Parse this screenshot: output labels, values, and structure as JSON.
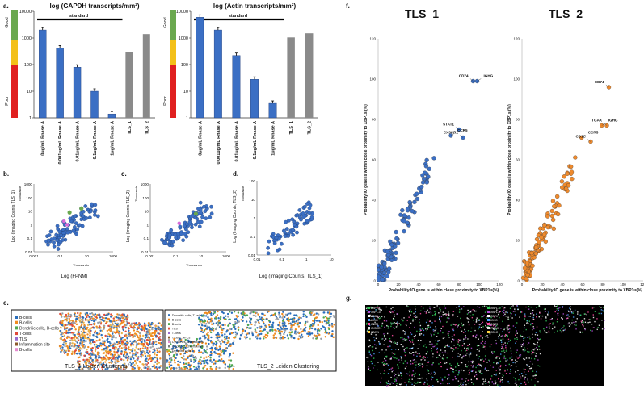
{
  "panel_labels": {
    "a": "a.",
    "b": "b.",
    "c": "c.",
    "d": "d.",
    "e": "e.",
    "f": "f.",
    "g": "g."
  },
  "quality_scale": {
    "good": "Good",
    "poor": "Poor"
  },
  "standard_label": "standard",
  "colors": {
    "blue": "#3b6fc4",
    "gray": "#8a8a8a",
    "orange": "#ef8a2c",
    "green": "#6aa84f",
    "magenta": "#d86ad8"
  },
  "chart_data": [
    {
      "type": "bar",
      "id": "gapdh",
      "title": "log (GAPDH transcripts/mm²)",
      "categories": [
        "0ug/mL Rnase A",
        "0.001ug/mL Rnase A",
        "0.01ug/mL Rnase A",
        "0.1ug/mL Rnase A",
        "1ug/mL Rnase A",
        "TLS_1",
        "TLS_2"
      ],
      "values": [
        2000,
        420,
        80,
        10,
        1.4,
        300,
        1400
      ],
      "yticks": [
        "1",
        "10",
        "100",
        "1000",
        "10000"
      ],
      "ylim": [
        1,
        10000
      ],
      "scale": "log"
    },
    {
      "type": "bar",
      "id": "actin",
      "title": "log (Actin transcripts/mm²)",
      "categories": [
        "0ug/mL Rnase A",
        "0.001ug/mL Rnase A",
        "0.01ug/mL Rnase A",
        "0.1ug/mL Rnase A",
        "1ug/mL Rnase A",
        "TLS_1",
        "TLS_2"
      ],
      "values": [
        6000,
        2000,
        220,
        28,
        3.5,
        1050,
        1500
      ],
      "yticks": [
        "1",
        "10",
        "100",
        "1000",
        "10000"
      ],
      "ylim": [
        1,
        10000
      ],
      "scale": "log"
    },
    {
      "type": "scatter",
      "id": "tls1",
      "title": "TLS_1",
      "xlabel": "Probability IO gene is within close proximity to XBP1u(%)",
      "ylabel": "Probability IO gene is within close proximity to XBP1s (%)",
      "xlim": [
        0,
        120
      ],
      "ylim": [
        0,
        120
      ],
      "ticks": [
        "0",
        "20",
        "40",
        "60",
        "80",
        "100",
        "120"
      ],
      "annotations": [
        {
          "label": "CD74",
          "x": 94,
          "y": 99
        },
        {
          "label": "IGHG",
          "x": 98,
          "y": 99
        },
        {
          "label": "STAT1",
          "x": 80,
          "y": 75
        },
        {
          "label": "CCR5",
          "x": 72,
          "y": 72
        },
        {
          "label": "CX3CR1",
          "x": 84,
          "y": 71
        }
      ]
    },
    {
      "type": "scatter",
      "id": "tls2",
      "title": "TLS_2",
      "xlabel": "Probability IO gene is within close proximity to XBP1u(%)",
      "ylabel": "Probability IO gene is within close proximity to XBP1s (%)",
      "xlim": [
        0,
        120
      ],
      "ylim": [
        0,
        120
      ],
      "ticks": [
        "0",
        "20",
        "40",
        "60",
        "80",
        "100",
        "120"
      ],
      "annotations": [
        {
          "label": "CD74",
          "x": 86,
          "y": 96
        },
        {
          "label": "IGHG",
          "x": 79,
          "y": 77
        },
        {
          "label": "ITGAX",
          "x": 84,
          "y": 77
        },
        {
          "label": "CCR5",
          "x": 59,
          "y": 71
        },
        {
          "label": "CD1C",
          "x": 68,
          "y": 69
        }
      ]
    }
  ],
  "panel_b": {
    "ylabel": "Log (Imaging Counts TLS_1)",
    "xlabel": "Log (FPNM)",
    "thousands_x": "Thousands",
    "thousands_y": "Thousands",
    "yticks": [
      "1000",
      "100",
      "10",
      "1",
      "0.1",
      "0.01"
    ],
    "xticks": [
      "0.001",
      "0.1",
      "10",
      "1000"
    ]
  },
  "panel_c": {
    "ylabel": "Log (Imaging Counts TLS_2)",
    "thousands_x": "Thousands",
    "thousands_y": "Thousands",
    "yticks": [
      "1000",
      "100",
      "10",
      "1",
      "0.1",
      "0.01"
    ],
    "xticks": [
      "0.001",
      "0.1",
      "10",
      "1000"
    ]
  },
  "panel_d": {
    "ylabel": "Log (Imaging Counts, TLS_2)",
    "xlabel": "Log (Imaging Counts, TLS_1)",
    "thousands_y": "Thousands",
    "yticks": [
      "100",
      "10",
      "1",
      "0.1",
      "0.01"
    ],
    "xticks": [
      "0.01",
      "0.1",
      "1",
      "10"
    ]
  },
  "panel_e": {
    "left_caption": "TLS_1 Leiden Clustering",
    "right_caption": "TLS_2 Leiden Clustering",
    "left_legend": [
      "B-cells",
      "B-cells",
      "Dendritic cells, B-cells",
      "T-cells",
      "TLS",
      "Inflammation site",
      "B-cells"
    ],
    "right_legend": [
      "Dendritic cells, T-cells",
      "B-cells",
      "B-cells",
      "TLS",
      "T-cells",
      "T-cells, APCs",
      "Cytokines, chemokines",
      "Cytokines, chemokines",
      "Dendritic cells"
    ]
  },
  "panel_g": {
    "left_legend": [
      "XBP1-s",
      "XBP1-u",
      "CD74",
      "IGHG",
      "CCR5",
      "CX3CR1",
      "STAT1"
    ],
    "right_legend": [
      "XBP1-s",
      "XBP1-u",
      "CD74",
      "IGHG",
      "CCR5",
      "ITGAX",
      "CD1C"
    ]
  }
}
